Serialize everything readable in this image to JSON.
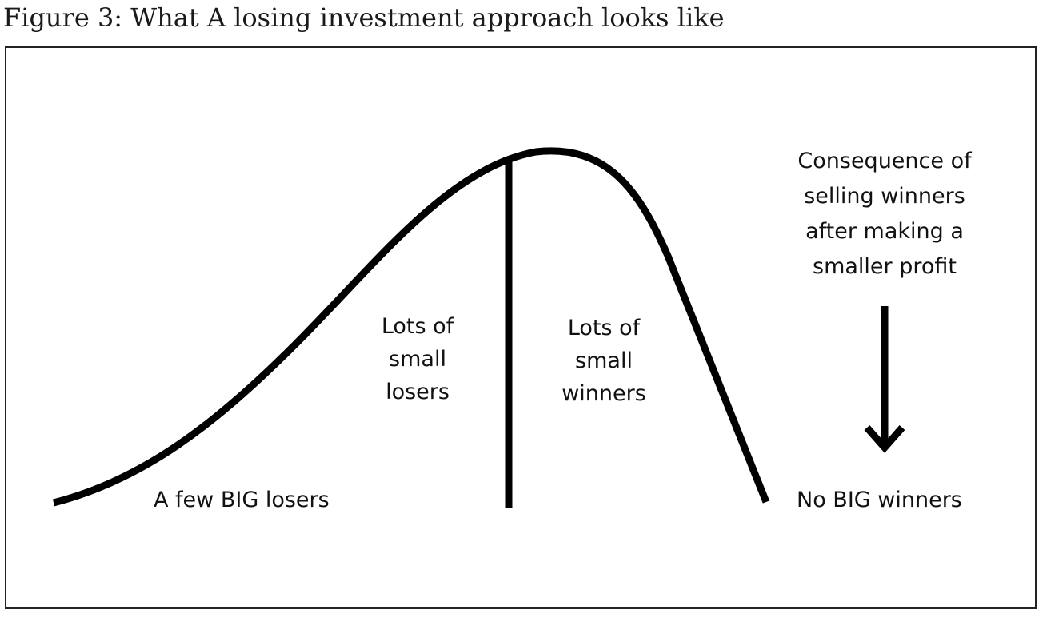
{
  "figure": {
    "title": "Figure 3: What A losing investment approach looks like"
  },
  "labels": {
    "few_big_losers": "A few BIG losers",
    "small_losers": [
      "Lots of",
      "small",
      "losers"
    ],
    "small_winners": [
      "Lots of",
      "small",
      "winners"
    ],
    "consequence": [
      "Consequence of",
      "selling winners",
      "after making a",
      "smaller profit"
    ],
    "no_big_winners": "No BIG winners"
  },
  "colors": {
    "ink": "#000000",
    "frame": "#222222",
    "background": "#ffffff"
  },
  "icons": {
    "arrow": "arrow-down-icon"
  }
}
